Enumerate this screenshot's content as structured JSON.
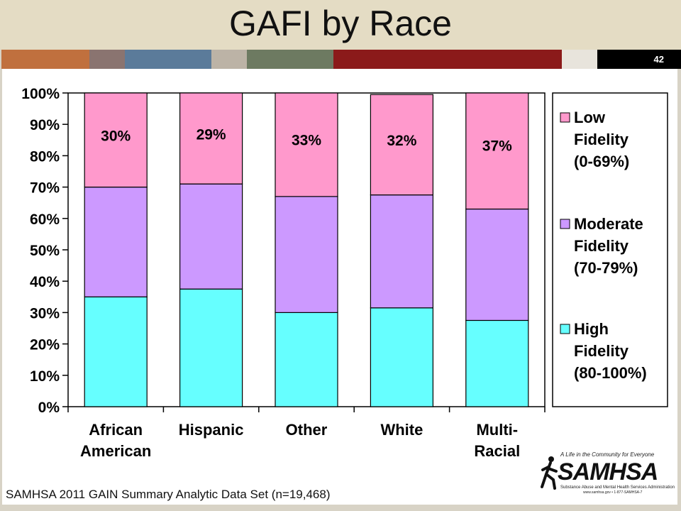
{
  "slide": {
    "title": "GAFI by Race",
    "page_number": "42",
    "source_note": "SAMHSA 2011 GAIN Summary Analytic Data Set (n=19,468)"
  },
  "logo": {
    "tagline": "A Life in the Community for Everyone",
    "wordmark": "SAMHSA",
    "subtitle": "Substance Abuse and Mental Health Services Administration",
    "url": "www.samhsa.gov • 1-877-SAMHSA-7"
  },
  "colors": {
    "low": "#ff99cc",
    "moderate": "#cc99ff",
    "high": "#66ffff",
    "stripes": [
      "#c0703e",
      "#8a7470",
      "#5b7b9a",
      "#bcb3a6",
      "#6d7a61",
      "#8b1a1a",
      "#e8e4dc",
      "#000000"
    ]
  },
  "chart_data": {
    "type": "bar",
    "stacked": true,
    "categories": [
      "African American",
      "Hispanic",
      "Other",
      "White",
      "Multi-Racial"
    ],
    "category_lines": [
      [
        "African",
        "American"
      ],
      [
        "Hispanic"
      ],
      [
        "Other"
      ],
      [
        "White"
      ],
      [
        "Multi-",
        "Racial"
      ]
    ],
    "series": [
      {
        "name": "High Fidelity (80-100%)",
        "name_lines": [
          "High",
          "Fidelity",
          "(80-100%)"
        ],
        "values": [
          35,
          37.5,
          30,
          31.5,
          27.5
        ]
      },
      {
        "name": "Moderate Fidelity (70-79%)",
        "name_lines": [
          "Moderate",
          "Fidelity",
          "(70-79%)"
        ],
        "values": [
          35,
          33.5,
          37,
          36,
          35.5
        ]
      },
      {
        "name": "Low Fidelity (0-69%)",
        "name_lines": [
          "Low",
          "Fidelity",
          "(0-69%)"
        ],
        "values": [
          30,
          29,
          33,
          32,
          37
        ]
      }
    ],
    "data_labels": [
      "30%",
      "29%",
      "33%",
      "32%",
      "37%"
    ],
    "y_ticks": [
      "0%",
      "10%",
      "20%",
      "30%",
      "40%",
      "50%",
      "60%",
      "70%",
      "80%",
      "90%",
      "100%"
    ],
    "ylim": [
      0,
      100
    ],
    "legend_position": "right",
    "grid": false
  }
}
